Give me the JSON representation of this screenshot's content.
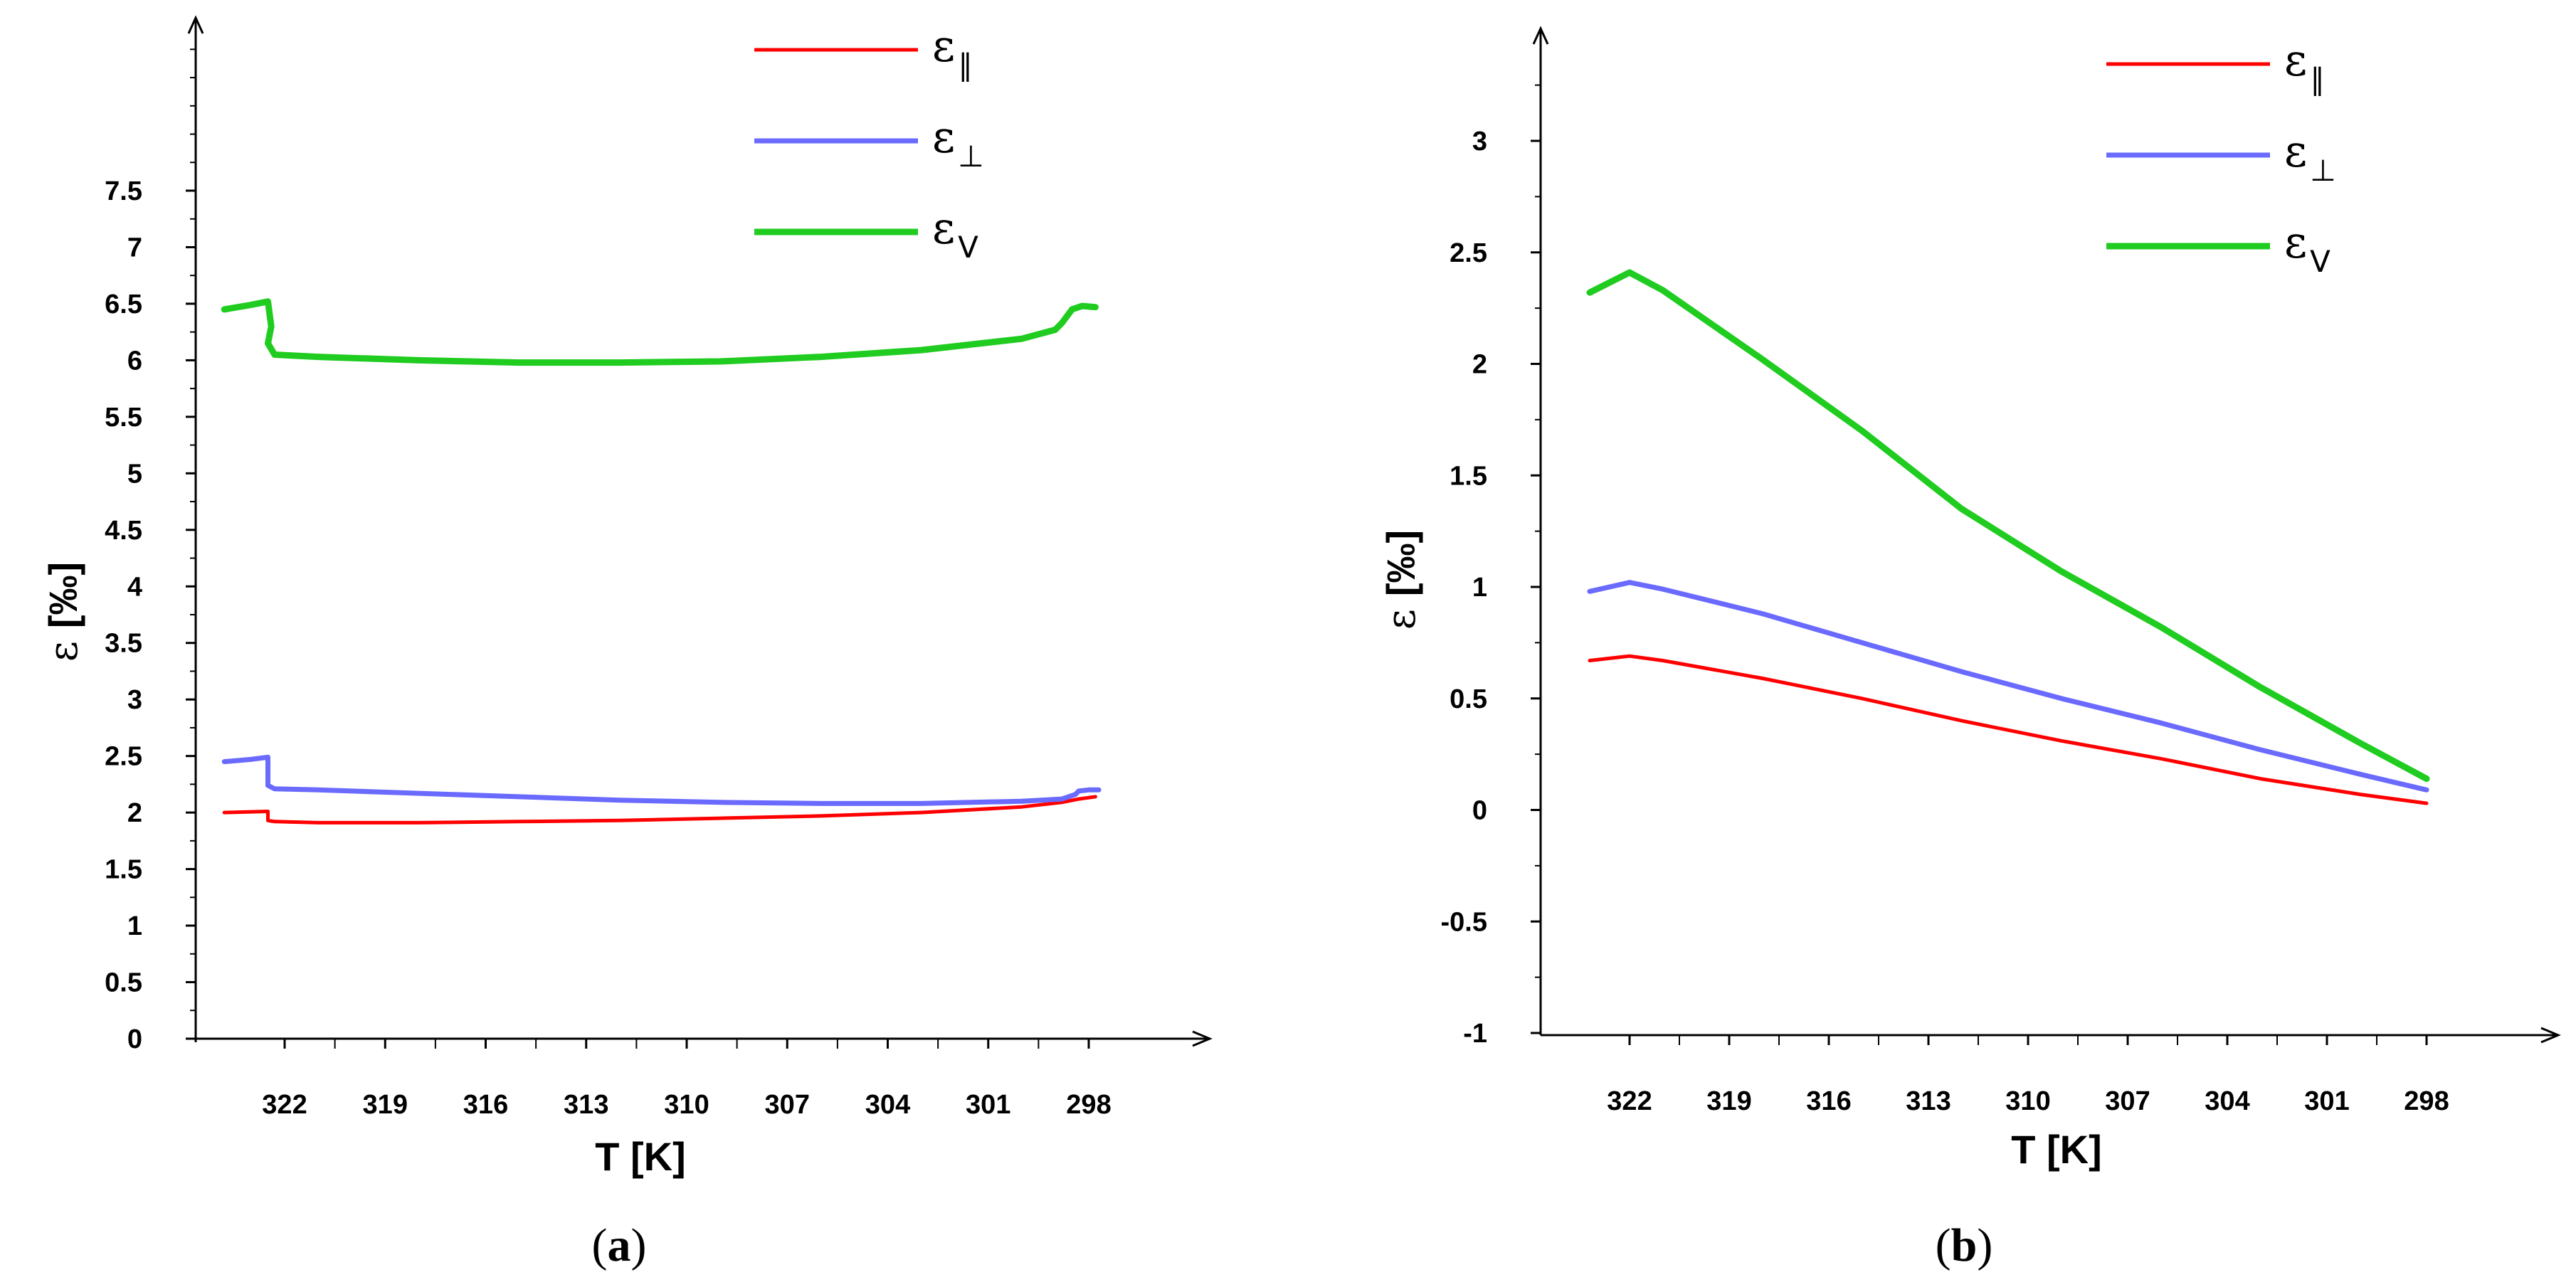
{
  "chart_data": [
    {
      "panel": "a",
      "type": "line",
      "caption_open": "(",
      "caption_letter": "a",
      "caption_close": ")",
      "xlabel": "T [K]",
      "ylabel_symbol": "ε",
      "ylabel_unit": "[‰]",
      "x_ticks": [
        "322",
        "319",
        "316",
        "313",
        "310",
        "307",
        "304",
        "301",
        "298"
      ],
      "x_tick_values": [
        322,
        319,
        316,
        313,
        310,
        307,
        304,
        301,
        298
      ],
      "xlim": [
        324.2,
        294
      ],
      "y_ticks": [
        "0",
        "0.5",
        "1",
        "1.5",
        "2",
        "2.5",
        "3",
        "3.5",
        "4",
        "4.5",
        "5",
        "5.5",
        "6",
        "6.5",
        "7",
        "7.5"
      ],
      "ylim": [
        0,
        9.15
      ],
      "legend_position": "top-right",
      "series": [
        {
          "name": "ε∥",
          "base": "ε",
          "sub": "∥",
          "color": "#ff0000",
          "width": 5,
          "x": [
            323.8,
            322.5,
            322.5,
            322.3,
            321,
            318,
            315,
            312,
            309,
            306,
            303,
            300,
            298.8,
            298.3,
            297.8
          ],
          "y": [
            2.0,
            2.01,
            1.93,
            1.92,
            1.91,
            1.91,
            1.92,
            1.93,
            1.95,
            1.97,
            2.0,
            2.05,
            2.09,
            2.12,
            2.14
          ]
        },
        {
          "name": "ε⊥",
          "base": "ε",
          "sub": "⊥",
          "color": "#6a6aff",
          "width": 7,
          "x": [
            323.8,
            323,
            322.5,
            322.5,
            322.3,
            321,
            318,
            315,
            312,
            309,
            306,
            303,
            300,
            298.8,
            298.4,
            298.3,
            298.0,
            297.7
          ],
          "y": [
            2.45,
            2.47,
            2.49,
            2.24,
            2.21,
            2.2,
            2.17,
            2.14,
            2.11,
            2.09,
            2.08,
            2.08,
            2.1,
            2.12,
            2.16,
            2.19,
            2.2,
            2.2
          ]
        },
        {
          "name": "εv",
          "base": "ε",
          "sub": "V",
          "color": "#1fcc1f",
          "width": 9,
          "x": [
            323.8,
            323,
            322.5,
            322.4,
            322.5,
            322.3,
            321,
            318,
            315,
            312,
            309,
            306,
            303,
            300,
            299,
            298.8,
            298.5,
            298.2,
            297.8
          ],
          "y": [
            6.45,
            6.49,
            6.52,
            6.3,
            6.15,
            6.05,
            6.03,
            6.0,
            5.98,
            5.98,
            5.99,
            6.03,
            6.09,
            6.19,
            6.27,
            6.33,
            6.45,
            6.48,
            6.47
          ]
        }
      ]
    },
    {
      "panel": "b",
      "type": "line",
      "caption_open": "(",
      "caption_letter": "b",
      "caption_close": ")",
      "xlabel": "T [K]",
      "ylabel_symbol": "ε",
      "ylabel_unit": "[‰]",
      "x_ticks": [
        "322",
        "319",
        "316",
        "313",
        "310",
        "307",
        "304",
        "301",
        "298"
      ],
      "x_tick_values": [
        322,
        319,
        316,
        313,
        310,
        307,
        304,
        301,
        298
      ],
      "xlim": [
        324.2,
        294
      ],
      "y_ticks": [
        "-1",
        "-0.5",
        "0",
        "0.5",
        "1",
        "1.5",
        "2",
        "2.5",
        "3"
      ],
      "ylim": [
        -1,
        3.58
      ],
      "legend_position": "top-right",
      "series": [
        {
          "name": "ε∥",
          "base": "ε",
          "sub": "∥",
          "color": "#ff0000",
          "width": 5,
          "x": [
            323.2,
            322,
            321,
            318,
            315,
            312,
            309,
            306,
            303,
            300,
            298
          ],
          "y": [
            0.67,
            0.69,
            0.67,
            0.59,
            0.5,
            0.4,
            0.31,
            0.23,
            0.14,
            0.07,
            0.03
          ]
        },
        {
          "name": "ε⊥",
          "base": "ε",
          "sub": "⊥",
          "color": "#6a6aff",
          "width": 7,
          "x": [
            323.2,
            322,
            321,
            318,
            315,
            312,
            309,
            306,
            303,
            300,
            298
          ],
          "y": [
            0.98,
            1.02,
            0.99,
            0.88,
            0.75,
            0.62,
            0.5,
            0.39,
            0.27,
            0.16,
            0.09
          ]
        },
        {
          "name": "εv",
          "base": "ε",
          "sub": "V",
          "color": "#1fcc1f",
          "width": 9,
          "x": [
            323.2,
            322,
            321,
            318,
            315,
            312,
            309,
            306,
            303,
            300,
            298
          ],
          "y": [
            2.32,
            2.41,
            2.33,
            2.02,
            1.7,
            1.35,
            1.07,
            0.82,
            0.55,
            0.3,
            0.14
          ]
        }
      ]
    }
  ]
}
